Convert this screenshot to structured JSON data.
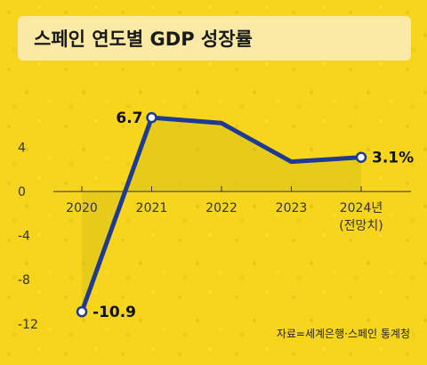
{
  "colors": {
    "background": "#f7d51d",
    "title_box": "#fbe9a6",
    "line": "#1f3a93",
    "area": "#d9c21a",
    "axis": "#333333"
  },
  "chart_data": {
    "type": "line",
    "title": "스페인 연도별 GDP 성장률",
    "categories": [
      "2020",
      "2021",
      "2022",
      "2023",
      "2024년"
    ],
    "category_sublabels": [
      "",
      "",
      "",
      "",
      "(전망치)"
    ],
    "series": [
      {
        "values": [
          -10.9,
          6.7,
          6.2,
          2.7,
          3.1
        ]
      }
    ],
    "data_labels": [
      {
        "index": 0,
        "text": "-10.9"
      },
      {
        "index": 1,
        "text": "6.7"
      },
      {
        "index": 4,
        "text": "3.1%"
      }
    ],
    "y_ticks": [
      4,
      0,
      -4,
      -8,
      -12
    ],
    "ylim": [
      -12.5,
      8
    ],
    "xlabel": "",
    "ylabel": "",
    "grid": false,
    "source": "자료=세계은행·스페인 통계청"
  }
}
